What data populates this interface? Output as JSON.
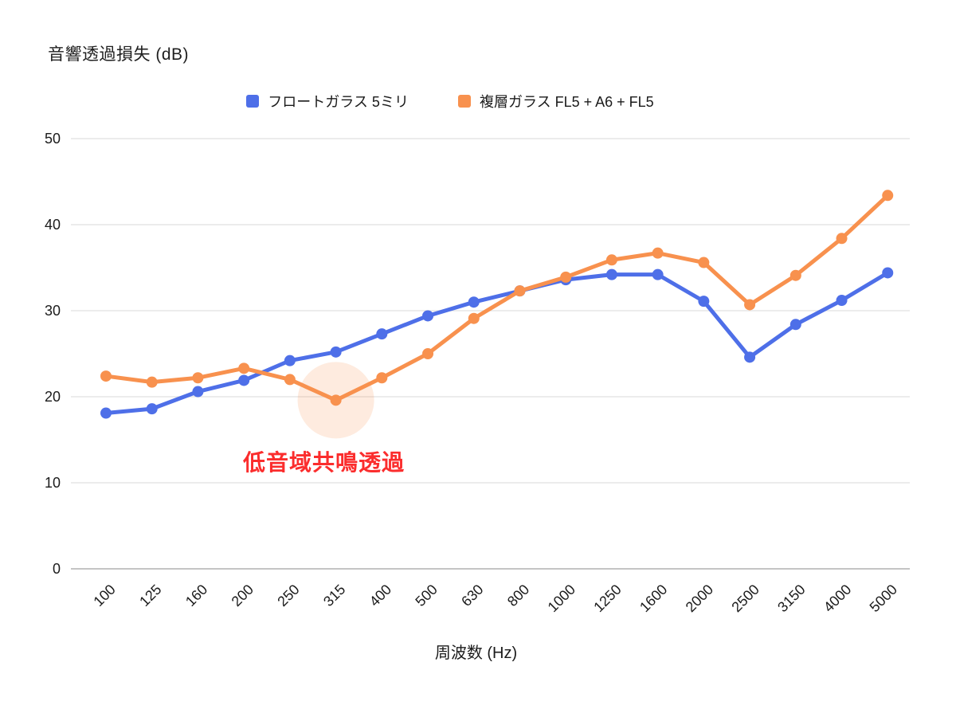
{
  "title": "音響透過損失 (dB)",
  "legend": {
    "items": [
      {
        "label": "フロートガラス 5ミリ",
        "color": "#4E6FE8"
      },
      {
        "label": "複層ガラス FL5 + A6 + FL5",
        "color": "#F8914E"
      }
    ]
  },
  "x_axis_title": "周波数 (Hz)",
  "annotation": {
    "text": "低音域共鳴透過",
    "color": "#FB2D2D"
  },
  "colors": {
    "grid_line": "#E6E6E6",
    "zero_line": "#C4C4C4",
    "tick_label": "#1b1b1b",
    "highlight_fill": "#F8914E"
  },
  "chart_data": {
    "type": "line",
    "title": "音響透過損失 (dB)",
    "xlabel": "周波数 (Hz)",
    "ylabel": "音響透過損失 (dB)",
    "categories": [
      "100",
      "125",
      "160",
      "200",
      "250",
      "315",
      "400",
      "500",
      "630",
      "800",
      "1000",
      "1250",
      "1600",
      "2000",
      "2500",
      "3150",
      "4000",
      "5000"
    ],
    "series": [
      {
        "name": "フロートガラス 5ミリ",
        "color": "#4E6FE8",
        "values": [
          18.1,
          18.6,
          20.6,
          21.9,
          24.2,
          25.2,
          27.3,
          29.4,
          31.0,
          32.3,
          33.6,
          34.2,
          34.2,
          31.1,
          24.6,
          28.4,
          31.2,
          34.4
        ]
      },
      {
        "name": "複層ガラス FL5 + A6 + FL5",
        "color": "#F8914E",
        "values": [
          22.4,
          21.7,
          22.2,
          23.3,
          22.0,
          19.6,
          22.2,
          25.0,
          29.1,
          32.3,
          33.9,
          35.9,
          36.7,
          35.6,
          30.7,
          34.1,
          38.4,
          43.4
        ]
      }
    ],
    "ylim": [
      0,
      50
    ],
    "yticks": [
      0,
      10,
      20,
      30,
      40,
      50
    ],
    "grid": true,
    "legend_position": "top",
    "annotations": [
      {
        "type": "circle_highlight",
        "category": "315",
        "series_index": 1,
        "radius": 48,
        "opacity": 0.18,
        "note": "低音域共鳴透過"
      }
    ]
  }
}
